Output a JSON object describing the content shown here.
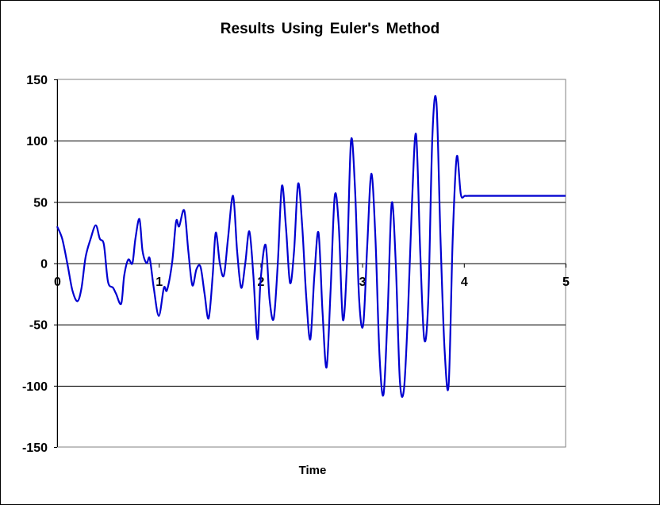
{
  "chart_data": {
    "type": "line",
    "title": "Results Using Euler's Method",
    "xlabel": "Time",
    "ylabel": "",
    "xlim": [
      0,
      5
    ],
    "ylim": [
      -150,
      150
    ],
    "x_ticks": [
      "0",
      "1",
      "2",
      "3",
      "4",
      "5"
    ],
    "y_ticks": [
      "150",
      "100",
      "50",
      "0",
      "-50",
      "-100",
      "-150"
    ],
    "x_tick_values": [
      0,
      1,
      2,
      3,
      4,
      5
    ],
    "y_tick_values": [
      150,
      100,
      50,
      0,
      -50,
      -100,
      -150
    ],
    "grid": "horizontal major",
    "legend": "none",
    "line_color": "#0000d0",
    "series": [
      {
        "x": [
          0.0,
          0.05,
          0.1,
          0.15,
          0.2,
          0.24,
          0.28,
          0.33,
          0.38,
          0.42,
          0.46,
          0.5,
          0.55,
          0.58,
          0.63,
          0.66,
          0.7,
          0.74,
          0.77,
          0.81,
          0.84,
          0.88,
          0.91,
          0.95,
          1.0,
          1.05,
          1.08,
          1.13,
          1.17,
          1.2,
          1.25,
          1.29,
          1.33,
          1.37,
          1.41,
          1.45,
          1.49,
          1.53,
          1.56,
          1.6,
          1.64,
          1.68,
          1.73,
          1.77,
          1.81,
          1.85,
          1.89,
          1.93,
          1.97,
          2.0,
          2.05,
          2.09,
          2.13,
          2.17,
          2.21,
          2.25,
          2.29,
          2.33,
          2.37,
          2.41,
          2.45,
          2.49,
          2.53,
          2.57,
          2.61,
          2.65,
          2.69,
          2.73,
          2.77,
          2.81,
          2.85,
          2.89,
          2.93,
          2.97,
          3.01,
          3.05,
          3.09,
          3.13,
          3.17,
          3.21,
          3.25,
          3.29,
          3.33,
          3.37,
          3.41,
          3.45,
          3.49,
          3.53,
          3.57,
          3.61,
          3.65,
          3.69,
          3.73,
          3.77,
          3.81,
          3.85,
          3.89,
          3.93,
          3.97,
          4.01,
          4.05,
          4.09,
          4.13,
          4.17,
          4.21,
          4.25,
          4.29,
          4.33,
          4.37,
          4.41,
          4.45,
          4.49,
          4.53,
          4.57,
          4.61,
          4.65,
          4.69,
          4.73,
          4.77,
          4.81,
          4.85,
          4.89,
          4.93,
          4.97,
          5.0
        ],
        "y": [
          30,
          20,
          0,
          -22,
          -31,
          -20,
          5,
          20,
          31,
          20,
          15,
          -15,
          -20,
          -25,
          -33,
          -10,
          3,
          0,
          20,
          36,
          10,
          0,
          4,
          -20,
          -43,
          -20,
          -22,
          0,
          34,
          30,
          43,
          10,
          -18,
          -5,
          -3,
          -25,
          -45,
          -10,
          25,
          0,
          -10,
          20,
          55,
          10,
          -20,
          0,
          26,
          -10,
          -62,
          -15,
          15,
          -30,
          -45,
          0,
          63,
          30,
          -16,
          10,
          65,
          30,
          -28,
          -62,
          -10,
          25,
          -40,
          -85,
          -20,
          55,
          30,
          -46,
          0,
          100,
          60,
          -30,
          -50,
          15,
          73,
          20,
          -75,
          -107,
          -40,
          49,
          0,
          -95,
          -103,
          -40,
          50,
          105,
          10,
          -62,
          -30,
          104,
          131,
          20,
          -70,
          -99,
          20,
          87,
          56,
          55,
          55,
          55,
          55,
          55,
          55,
          55,
          55,
          55,
          55,
          55,
          55,
          55,
          55,
          55,
          55,
          55,
          55,
          55,
          55,
          55,
          55,
          55,
          55,
          55,
          55
        ]
      }
    ]
  }
}
